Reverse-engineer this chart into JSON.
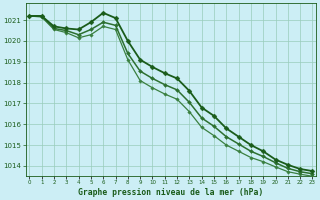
{
  "title": "Graphe pression niveau de la mer (hPa)",
  "background_color": "#cceef5",
  "plot_bg_color": "#cceef5",
  "grid_color": "#99ccbb",
  "text_color": "#1a5c1a",
  "ylim": [
    1013.5,
    1021.8
  ],
  "xlim": [
    -0.3,
    23.3
  ],
  "yticks": [
    1014,
    1015,
    1016,
    1017,
    1018,
    1019,
    1020,
    1021
  ],
  "xticks": [
    0,
    1,
    2,
    3,
    4,
    5,
    6,
    7,
    8,
    9,
    10,
    11,
    12,
    13,
    14,
    15,
    16,
    17,
    18,
    19,
    20,
    21,
    22,
    23
  ],
  "series": [
    {
      "x": [
        0,
        1,
        2,
        3,
        4,
        5,
        6,
        7,
        8,
        9,
        10,
        11,
        12,
        13,
        14,
        15,
        16,
        17,
        18,
        19,
        20,
        21,
        22,
        23
      ],
      "y": [
        1021.2,
        1021.2,
        1020.7,
        1020.6,
        1020.55,
        1020.9,
        1021.35,
        1021.1,
        1020.0,
        1019.1,
        1018.75,
        1018.45,
        1018.2,
        1017.6,
        1016.8,
        1016.4,
        1015.8,
        1015.4,
        1015.0,
        1014.7,
        1014.3,
        1014.05,
        1013.85,
        1013.75
      ],
      "color": "#1a5c1a",
      "lw": 1.3,
      "marker": "D",
      "ms": 2.5,
      "zorder": 5
    },
    {
      "x": [
        0,
        1,
        2,
        3,
        4,
        5,
        6,
        7,
        8,
        9,
        10,
        11,
        12,
        13,
        14,
        15,
        16,
        17,
        18,
        19,
        20,
        21,
        22,
        23
      ],
      "y": [
        1021.2,
        1021.2,
        1020.6,
        1020.5,
        1020.3,
        1020.55,
        1020.9,
        1020.75,
        1019.4,
        1018.55,
        1018.2,
        1017.9,
        1017.65,
        1017.05,
        1016.3,
        1015.9,
        1015.4,
        1015.05,
        1014.7,
        1014.45,
        1014.15,
        1013.88,
        1013.72,
        1013.62
      ],
      "color": "#2d7030",
      "lw": 1.1,
      "marker": "D",
      "ms": 2.0,
      "zorder": 4
    },
    {
      "x": [
        0,
        1,
        2,
        3,
        4,
        5,
        6,
        7,
        8,
        9,
        10,
        11,
        12,
        13,
        14,
        15,
        16,
        17,
        18,
        19,
        20,
        21,
        22,
        23
      ],
      "y": [
        1021.2,
        1021.15,
        1020.55,
        1020.4,
        1020.15,
        1020.3,
        1020.7,
        1020.55,
        1019.1,
        1018.1,
        1017.75,
        1017.45,
        1017.2,
        1016.6,
        1015.85,
        1015.45,
        1015.0,
        1014.7,
        1014.4,
        1014.2,
        1013.95,
        1013.72,
        1013.6,
        1013.5
      ],
      "color": "#3a8040",
      "lw": 0.9,
      "marker": "D",
      "ms": 1.8,
      "zorder": 3
    }
  ]
}
